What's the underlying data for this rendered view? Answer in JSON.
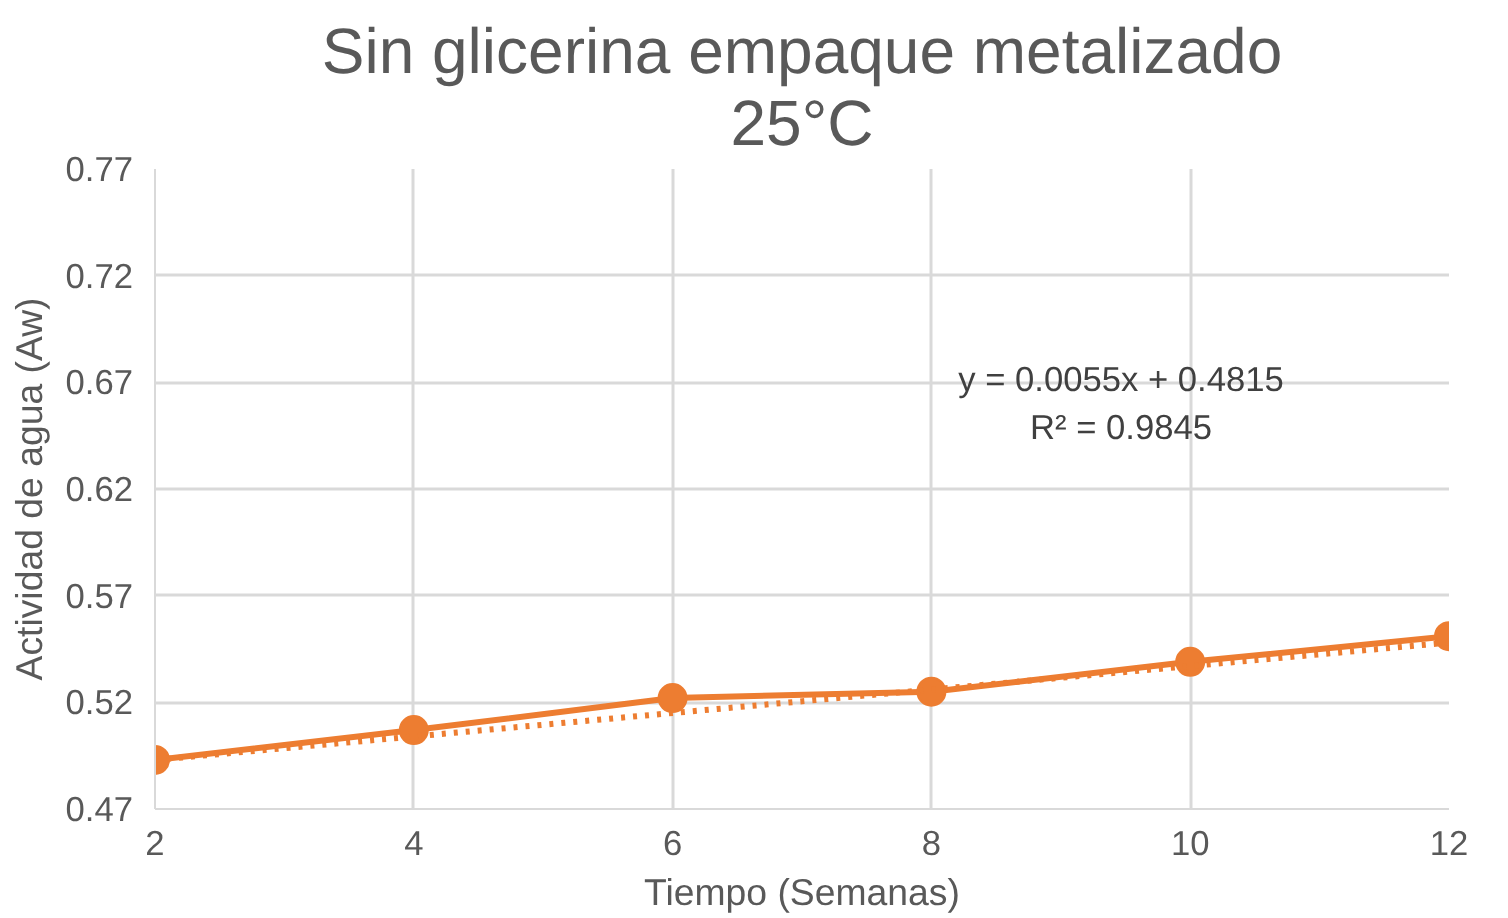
{
  "chart_data": {
    "type": "line",
    "title": "Sin glicerina empaque metalizado\n25°C",
    "xlabel": "Tiempo (Semanas)",
    "ylabel": "Actividad de agua (Aw)",
    "x": [
      2,
      4,
      6,
      8,
      10,
      12
    ],
    "series": [
      {
        "color": "#ed7d31",
        "values": [
          0.493,
          0.507,
          0.522,
          0.525,
          0.539,
          0.551
        ],
        "marker": "circle",
        "line_style": "solid"
      },
      {
        "type": "line",
        "color": "#ed7d31",
        "x": [
          2,
          12
        ],
        "values": [
          0.493,
          0.548
        ],
        "marker": "none",
        "line_style": "dotted"
      }
    ],
    "annotations": [
      "y = 0.0055x + 0.4815\nR² = 0.9845"
    ],
    "xlim": [
      2,
      12
    ],
    "ylim": [
      0.47,
      0.77
    ],
    "xticks": [
      2,
      4,
      6,
      8,
      10,
      12
    ],
    "yticks": [
      {
        "value": 0.47,
        "label": "0.47"
      },
      {
        "value": 0.52,
        "label": "0.52"
      },
      {
        "value": 0.57,
        "label": "0.57"
      },
      {
        "value": 0.62,
        "label": "0.62"
      },
      {
        "value": 0.67,
        "label": "0.67"
      },
      {
        "value": 0.72,
        "label": "0.72"
      },
      {
        "value": 0.77,
        "label": "0.77"
      }
    ],
    "grid": true
  }
}
